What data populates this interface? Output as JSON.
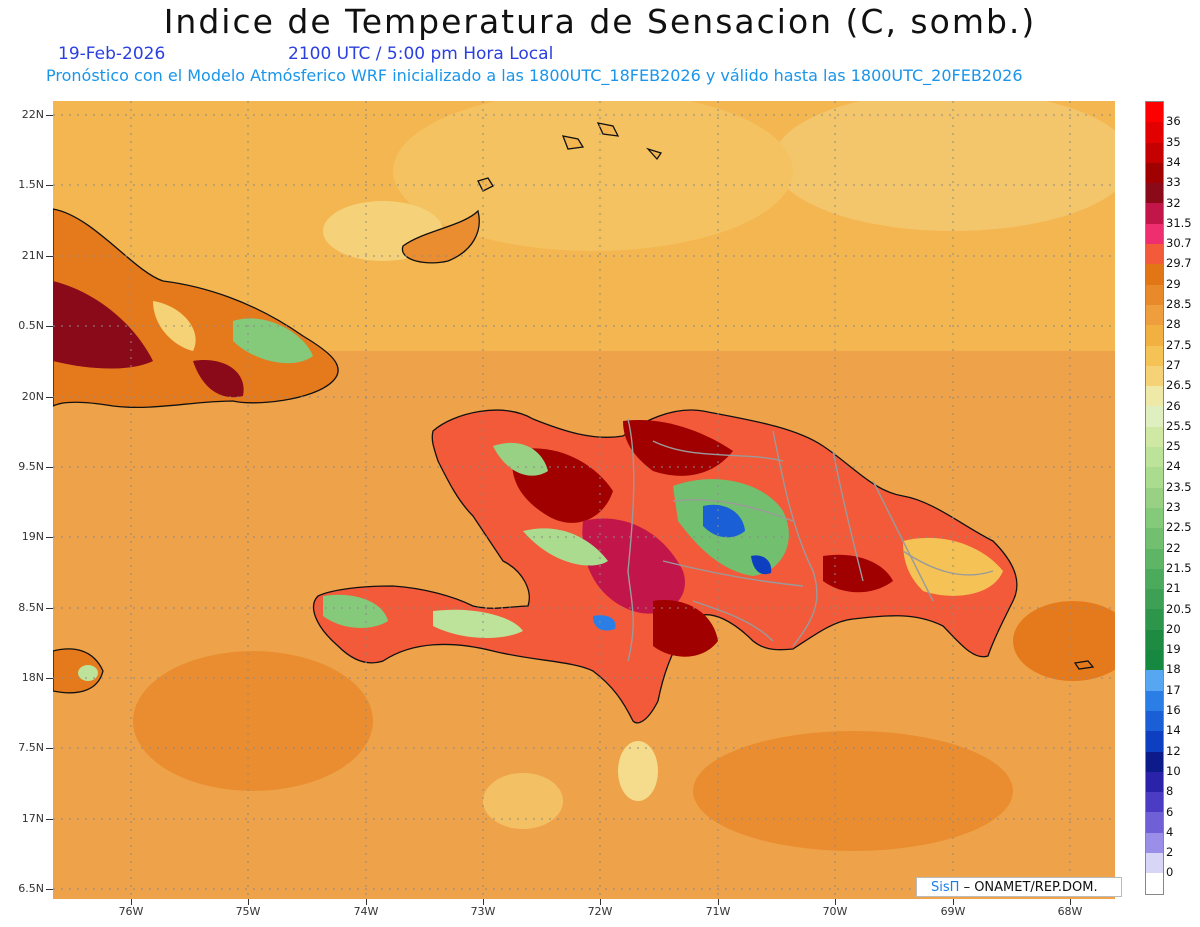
{
  "title": "Indice de Temperatura de Sensacion (C, somb.)",
  "date": "19-Feb-2026",
  "time": "2100 UTC / 5:00 pm Hora Local",
  "subtitle": "Pronóstico con el Modelo Atmósferico WRF inicializado a las 1800UTC_18FEB2026 y válido hasta las  1800UTC_20FEB2026",
  "credit": {
    "brand": "SisΠ",
    "rest": "– ONAMET/REP.DOM."
  },
  "lat_labels": [
    "22N",
    "1.5N",
    "21N",
    "0.5N",
    "20N",
    "9.5N",
    "19N",
    "8.5N",
    "18N",
    "7.5N",
    "17N",
    "6.5N"
  ],
  "lon_labels": [
    "76W",
    "75W",
    "74W",
    "73W",
    "72W",
    "71W",
    "70W",
    "69W",
    "68W"
  ],
  "colorbar": {
    "labels": [
      "36",
      "35",
      "34",
      "33",
      "32",
      "31.5",
      "30.7",
      "29.7",
      "29",
      "28.5",
      "28",
      "27.5",
      "27",
      "26.5",
      "26",
      "25.5",
      "25",
      "24",
      "23.5",
      "23",
      "22.5",
      "22",
      "21.5",
      "21",
      "20.5",
      "20",
      "19",
      "18",
      "17",
      "16",
      "14",
      "12",
      "10",
      "8",
      "6",
      "4",
      "2",
      "0"
    ],
    "colors": [
      "#ff0000",
      "#e30000",
      "#c40000",
      "#a00000",
      "#8a0a1a",
      "#c2154a",
      "#ee2e6e",
      "#f25a3a",
      "#e27514",
      "#e8892a",
      "#ee9e3c",
      "#f2b040",
      "#f5c355",
      "#f5d275",
      "#efe9a8",
      "#e0efc0",
      "#cfe9a4",
      "#bde39a",
      "#abdb8f",
      "#98d184",
      "#85c97a",
      "#72bf70",
      "#5fb566",
      "#4caa5c",
      "#3da054",
      "#2e964b",
      "#1f8b42",
      "#17883f",
      "#56a6f2",
      "#2b7ee6",
      "#1a5fd6",
      "#0e3fc1",
      "#0c1a8a",
      "#2a22a8",
      "#4c3cc4",
      "#7060d8",
      "#9a8ee8",
      "#d8d6f6",
      "#ffffff"
    ]
  }
}
